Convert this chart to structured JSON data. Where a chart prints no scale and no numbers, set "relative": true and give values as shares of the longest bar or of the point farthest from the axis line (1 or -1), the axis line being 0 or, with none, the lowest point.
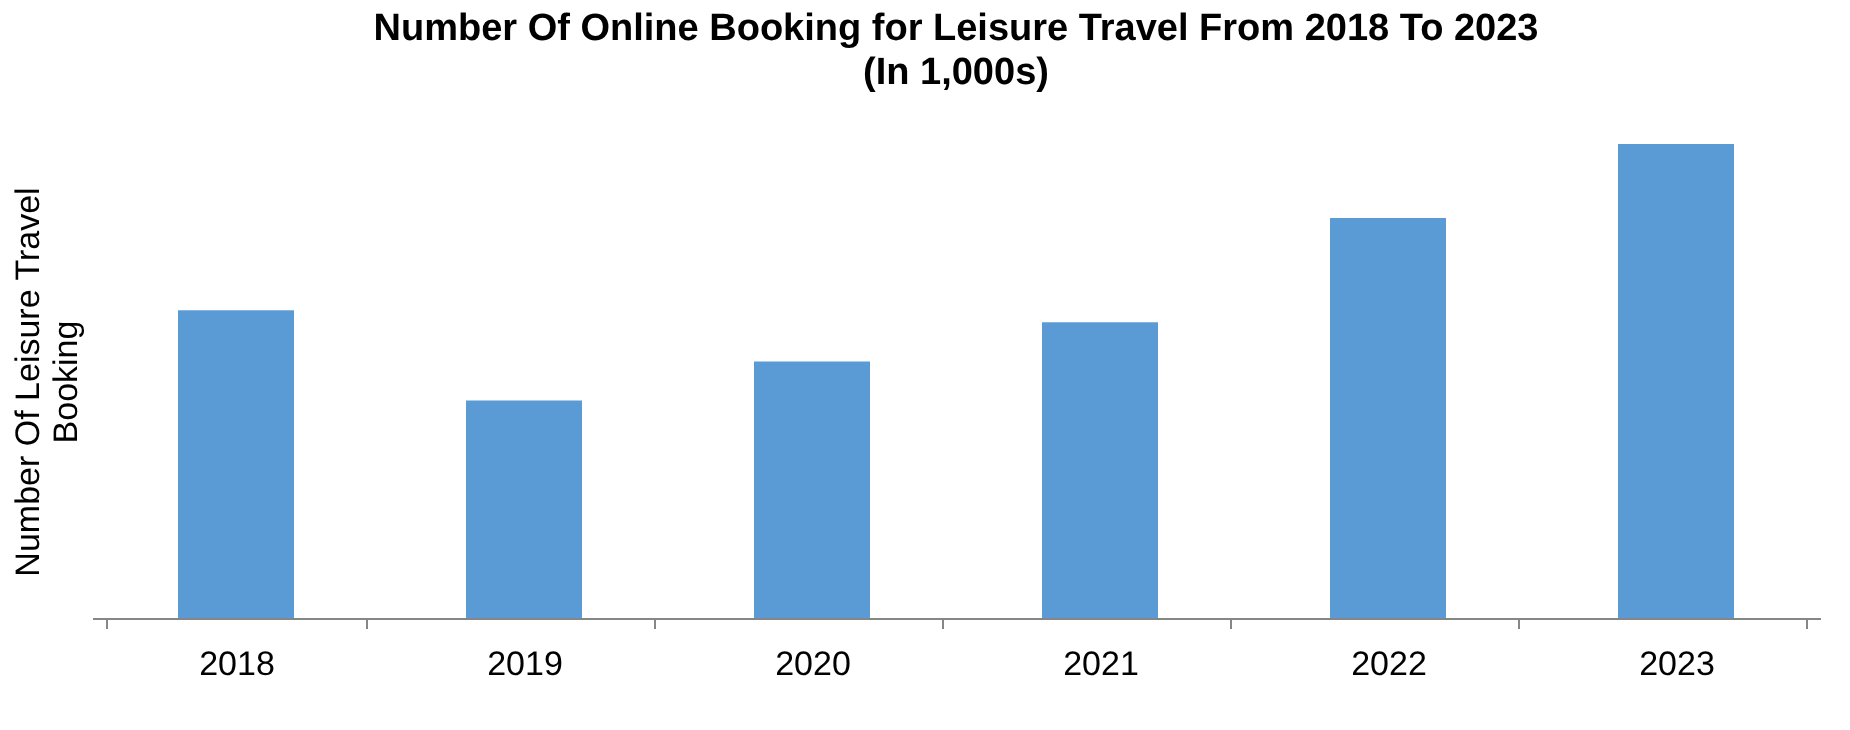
{
  "chart_data": {
    "type": "bar",
    "title": "Number Of Online Booking for Leisure Travel From 2018 To 2023",
    "subtitle": "(In 1,000s)",
    "ylabel": "Number Of Leisure Travel Booking",
    "categories": [
      "2018",
      "2019",
      "2020",
      "2021",
      "2022",
      "2023"
    ],
    "values": [
      0.649,
      0.459,
      0.541,
      0.624,
      0.844,
      1
    ],
    "color": "#5b9bd5",
    "relative": true,
    "grid": false
  }
}
